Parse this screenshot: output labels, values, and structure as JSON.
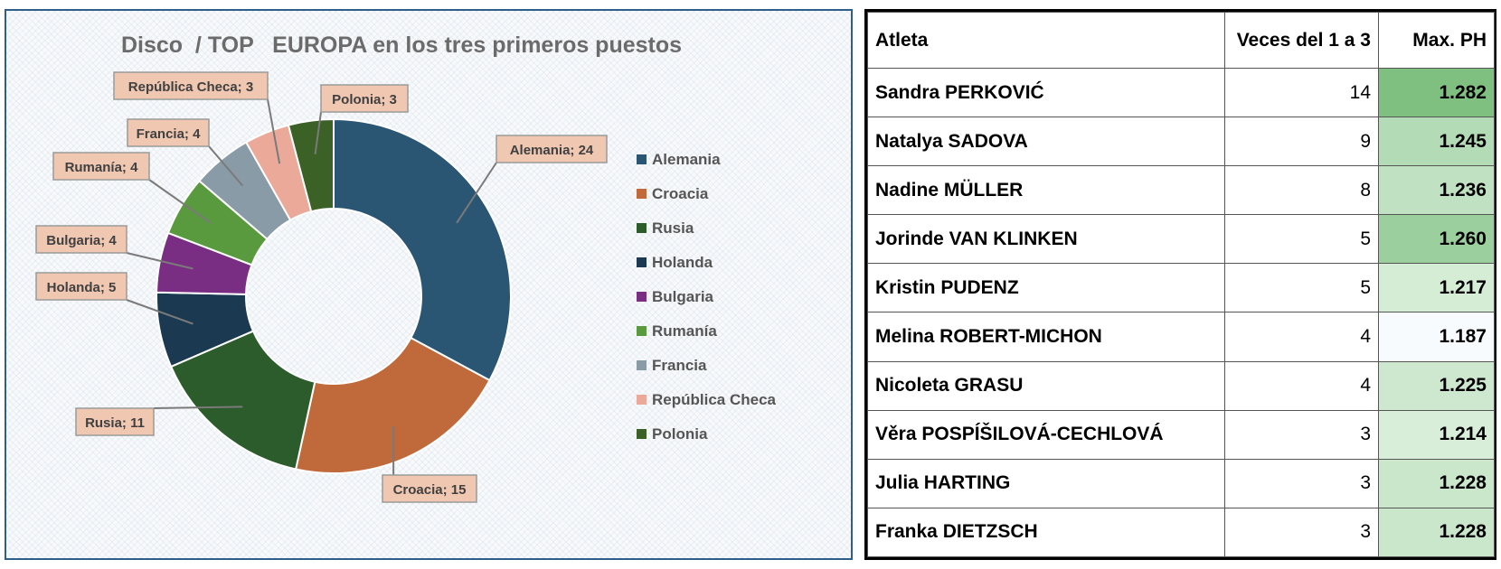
{
  "chart_data": {
    "type": "pie",
    "title": "Disco  / TOP   EUROPA en los tres primeros puestos",
    "categories": [
      "Alemania",
      "Croacia",
      "Rusia",
      "Holanda",
      "Bulgaria",
      "Rumanía",
      "Francia",
      "República Checa",
      "Polonia"
    ],
    "values": [
      24,
      15,
      11,
      5,
      4,
      4,
      4,
      3,
      3
    ],
    "data_labels": [
      "Alemania; 24",
      "Croacia; 15",
      "Rusia; 11",
      "Holanda; 5",
      "Bulgaria; 4",
      "Rumanía; 4",
      "Francia; 4",
      "República Checa; 3",
      "Polonia; 3"
    ],
    "colors": [
      "#2a5573",
      "#c0693b",
      "#2c5c2b",
      "#1b3a52",
      "#7a2e83",
      "#5a9a3e",
      "#8a9ba8",
      "#eba99a",
      "#3c6127"
    ],
    "legend_placement": "right",
    "donut": true
  },
  "table": {
    "headers": [
      "Atleta",
      "Veces del 1 a 3",
      "Max. PH"
    ],
    "rows": [
      {
        "name": "Sandra PERKOVIĆ",
        "count": "14",
        "max": "1.282",
        "color": "#7fbf7f"
      },
      {
        "name": "Natalya SADOVA",
        "count": "9",
        "max": "1.245",
        "color": "#b3dbb5"
      },
      {
        "name": "Nadine MÜLLER",
        "count": "8",
        "max": "1.236",
        "color": "#c1e2c2"
      },
      {
        "name": "Jorinde VAN KLINKEN",
        "count": "5",
        "max": "1.260",
        "color": "#9ccf9e"
      },
      {
        "name": "Kristin PUDENZ",
        "count": "5",
        "max": "1.217",
        "color": "#d5ecd5"
      },
      {
        "name": "Melina ROBERT-MICHON",
        "count": "4",
        "max": "1.187",
        "color": "#f8fbfd"
      },
      {
        "name": "Nicoleta GRASU",
        "count": "4",
        "max": "1.225",
        "color": "#cde8ce"
      },
      {
        "name": "Věra POSPÍŠILOVÁ-CECHLOVÁ",
        "count": "3",
        "max": "1.214",
        "color": "#d9eed9"
      },
      {
        "name": "Julia HARTING",
        "count": "3",
        "max": "1.228",
        "color": "#cae6cb"
      },
      {
        "name": "Franka DIETZSCH",
        "count": "3",
        "max": "1.228",
        "color": "#cae6cb"
      }
    ]
  }
}
